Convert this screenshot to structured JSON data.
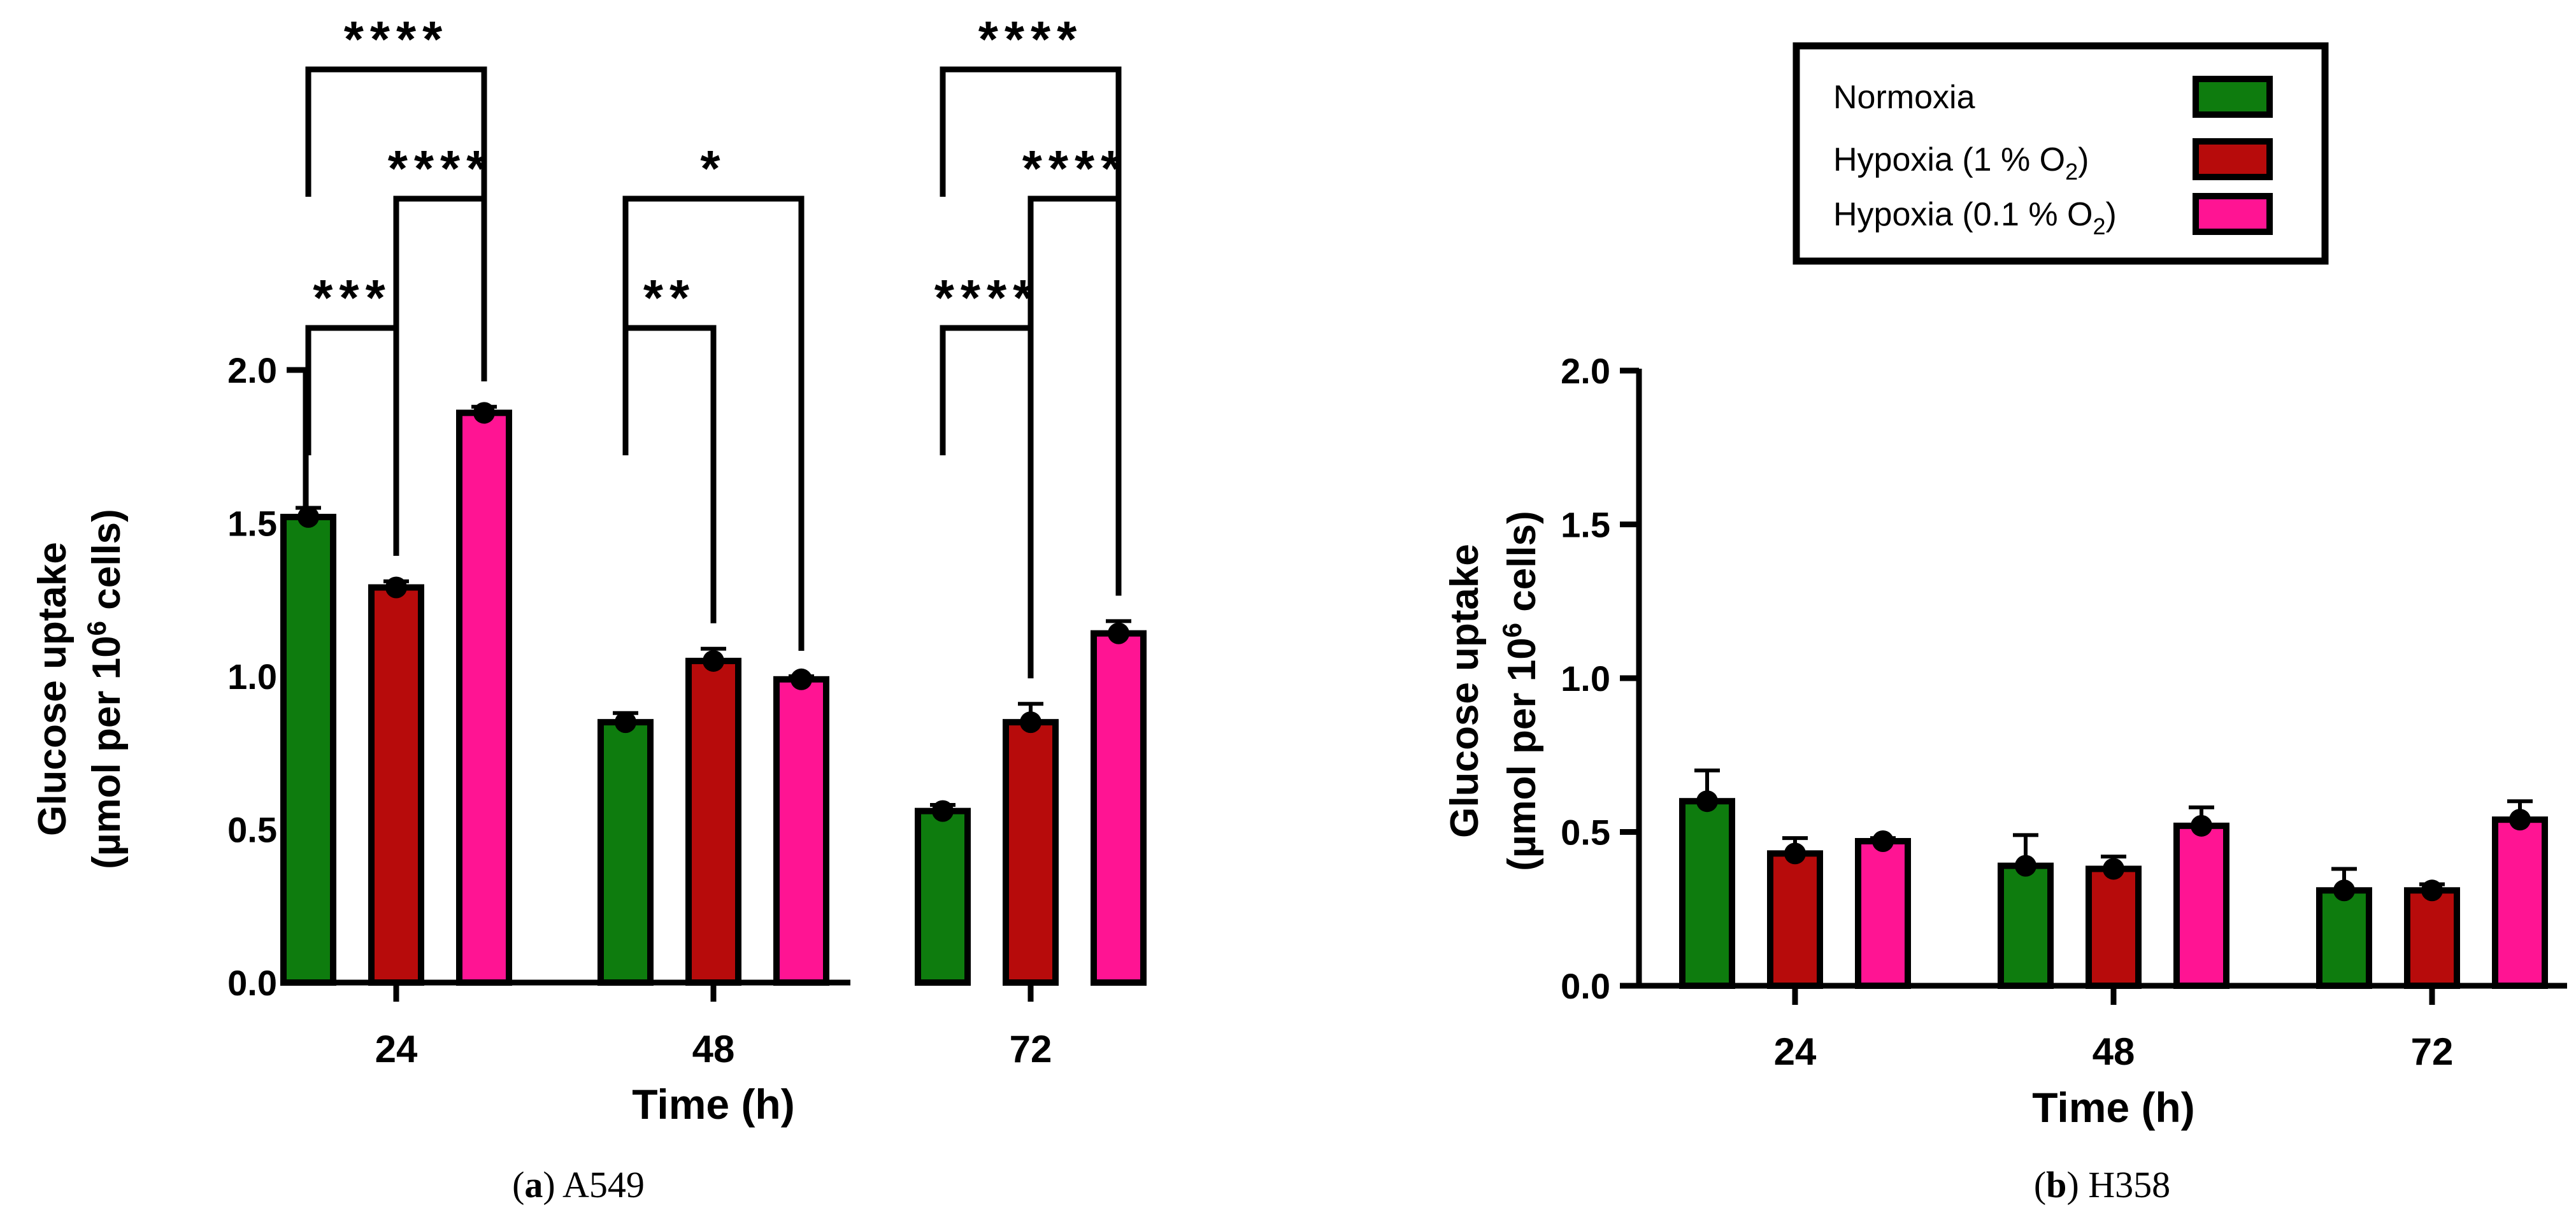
{
  "colors": {
    "Normoxia": "#0e7c0e",
    "Hypoxia (1 % O2)": "#b70b0b",
    "Hypoxia (0.1 % O2)": "#ff1493",
    "axis": "#000000"
  },
  "legend": {
    "entries": [
      {
        "series": "Normoxia",
        "label": "Normoxia",
        "sub": ""
      },
      {
        "series": "Hypoxia (1 % O2)",
        "label": "Hypoxia (1 % O",
        "sub": "2",
        "tail": ")"
      },
      {
        "series": "Hypoxia (0.1 % O2)",
        "label": "Hypoxia (0.1 % O",
        "sub": "2",
        "tail": ")"
      }
    ]
  },
  "chart_data": [
    {
      "type": "bar",
      "panel": "a",
      "caption_letter": "a",
      "caption_name": "A549",
      "title": "",
      "xlabel": "Time (h)",
      "ylabel_line1": "Glucose uptake",
      "ylabel_line2": "(µmol per 10",
      "ylabel_sup": "6",
      "ylabel_tail": " cells)",
      "ylim": [
        0,
        2.0
      ],
      "yticks": [
        "0.0",
        "0.5",
        "1.0",
        "1.5",
        "2.0"
      ],
      "categories": [
        "24",
        "48",
        "72"
      ],
      "series": [
        {
          "name": "Normoxia",
          "values": [
            1.52,
            0.85,
            0.56
          ],
          "errors": [
            0.03,
            0.03,
            0.02
          ]
        },
        {
          "name": "Hypoxia (1 % O2)",
          "values": [
            1.29,
            1.05,
            0.85
          ],
          "errors": [
            0.02,
            0.04,
            0.06
          ]
        },
        {
          "name": "Hypoxia (0.1 % O2)",
          "values": [
            1.86,
            0.99,
            1.14
          ],
          "errors": [
            0.02,
            0.01,
            0.04
          ]
        }
      ],
      "significance": [
        {
          "category": "24",
          "from": 0,
          "to": 1,
          "label": "***",
          "level": 0
        },
        {
          "category": "24",
          "from": 1,
          "to": 2,
          "label": "****",
          "level": 1
        },
        {
          "category": "24",
          "from": 0,
          "to": 2,
          "label": "****",
          "level": 2
        },
        {
          "category": "48",
          "from": 0,
          "to": 1,
          "label": "**",
          "level": 0
        },
        {
          "category": "48",
          "from": 0,
          "to": 2,
          "label": "*",
          "level": 1
        },
        {
          "category": "72",
          "from": 0,
          "to": 1,
          "label": "****",
          "level": 0
        },
        {
          "category": "72",
          "from": 1,
          "to": 2,
          "label": "****",
          "level": 1
        },
        {
          "category": "72",
          "from": 0,
          "to": 2,
          "label": "****",
          "level": 2
        }
      ]
    },
    {
      "type": "bar",
      "panel": "b",
      "caption_letter": "b",
      "caption_name": "H358",
      "title": "",
      "xlabel": "Time (h)",
      "ylabel_line1": "Glucose uptake",
      "ylabel_line2": "(µmol per 10",
      "ylabel_sup": "6",
      "ylabel_tail": " cells)",
      "ylim": [
        0,
        2.0
      ],
      "yticks": [
        "0.0",
        "0.5",
        "1.0",
        "1.5",
        "2.0"
      ],
      "categories": [
        "24",
        "48",
        "72"
      ],
      "series": [
        {
          "name": "Normoxia",
          "values": [
            0.6,
            0.39,
            0.31
          ],
          "errors": [
            0.1,
            0.1,
            0.07
          ]
        },
        {
          "name": "Hypoxia (1 % O2)",
          "values": [
            0.43,
            0.38,
            0.31
          ],
          "errors": [
            0.05,
            0.04,
            0.02
          ]
        },
        {
          "name": "Hypoxia (0.1 % O2)",
          "values": [
            0.47,
            0.52,
            0.54
          ],
          "errors": [
            0.01,
            0.06,
            0.06
          ]
        }
      ],
      "significance": []
    }
  ]
}
